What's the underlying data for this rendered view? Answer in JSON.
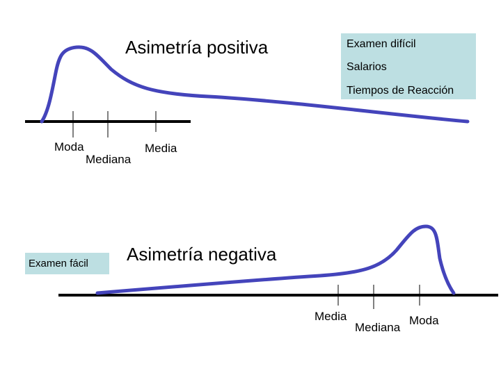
{
  "positive": {
    "title": "Asimetría positiva",
    "examples": [
      "Examen difícil",
      "Salarios",
      "Tiempos de Reacción"
    ],
    "labels": {
      "moda": "Moda",
      "mediana": "Mediana",
      "media": "Media"
    }
  },
  "negative": {
    "title": "Asimetría negativa",
    "example": "Examen fácil",
    "labels": {
      "media": "Media",
      "mediana": "Mediana",
      "moda": "Moda"
    }
  },
  "colors": {
    "curve": "#4444bb",
    "axis": "#000000",
    "box": "#bddfe2"
  }
}
